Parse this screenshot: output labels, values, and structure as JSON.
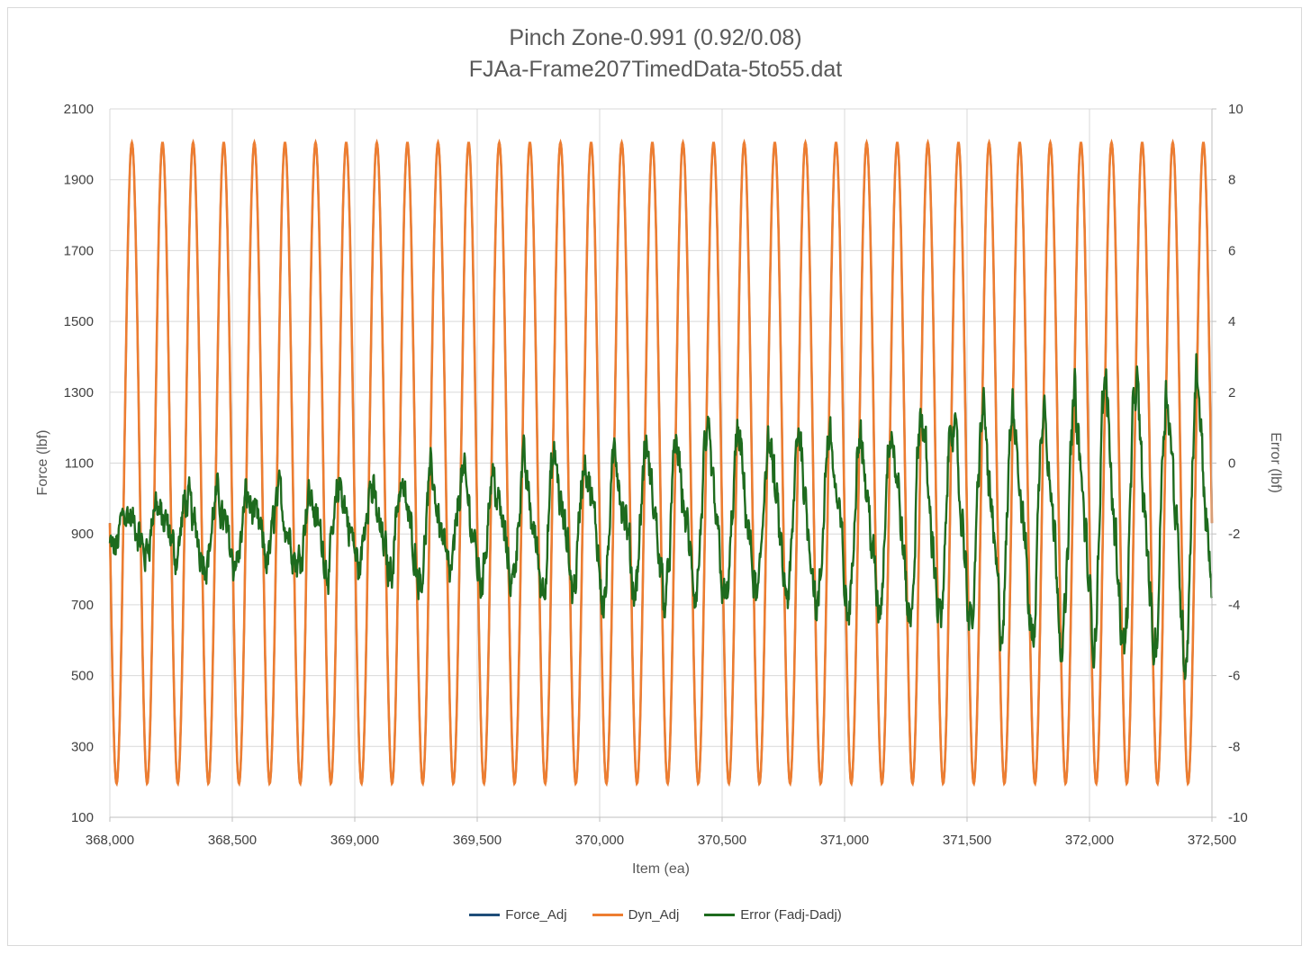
{
  "chart_data": {
    "type": "line",
    "title": "Pinch Zone-0.991 (0.92/0.08)",
    "subtitle": "FJAa-Frame207TimedData-5to55.dat",
    "xlabel": "Item (ea)",
    "ylabel": "Force (lbf)",
    "y2label": "Error (lbf)",
    "xlim": [
      368000,
      372500
    ],
    "ylim": [
      100,
      2100
    ],
    "y2lim": [
      -10,
      10
    ],
    "x_ticks": [
      368000,
      368500,
      369000,
      369500,
      370000,
      370500,
      371000,
      371500,
      372000,
      372500
    ],
    "x_tick_labels": [
      "368,000",
      "368,500",
      "369,000",
      "369,500",
      "370,000",
      "370,500",
      "371,000",
      "371,500",
      "372,000",
      "372,500"
    ],
    "y_ticks": [
      100,
      300,
      500,
      700,
      900,
      1100,
      1300,
      1500,
      1700,
      1900,
      2100
    ],
    "y_tick_labels": [
      "100",
      "300",
      "500",
      "700",
      "900",
      "1100",
      "1300",
      "1500",
      "1700",
      "1900",
      "2100"
    ],
    "y2_ticks": [
      -10,
      -8,
      -6,
      -4,
      -2,
      0,
      2,
      4,
      6,
      8,
      10
    ],
    "y2_tick_labels": [
      "-10",
      "-8",
      "-6",
      "-4",
      "-2",
      "0",
      "2",
      "4",
      "6",
      "8",
      "10"
    ],
    "grid": true,
    "legend_position": "bottom",
    "series": [
      {
        "name": "Force_Adj",
        "axis": "left",
        "color": "#1f4e79",
        "kind": "sine",
        "min": 195,
        "max": 2005,
        "period": 125,
        "phase_x": 368090
      },
      {
        "name": "Dyn_Adj",
        "axis": "left",
        "color": "#ed7d31",
        "kind": "sine",
        "min": 195,
        "max": 2005,
        "period": 125,
        "phase_x": 368090
      },
      {
        "name": "Error (Fadj-Dadj)",
        "axis": "right",
        "color": "#1e6b1e",
        "kind": "noisy-oscillation",
        "center_start": -1.9,
        "center_end": -1.5,
        "amplitude_start": 0.6,
        "amplitude_end": 3.6,
        "noise": 0.55,
        "period": 125,
        "range_start": [
          -4.1,
          0.7
        ],
        "range_end": [
          -6.2,
          2.9
        ]
      }
    ]
  }
}
